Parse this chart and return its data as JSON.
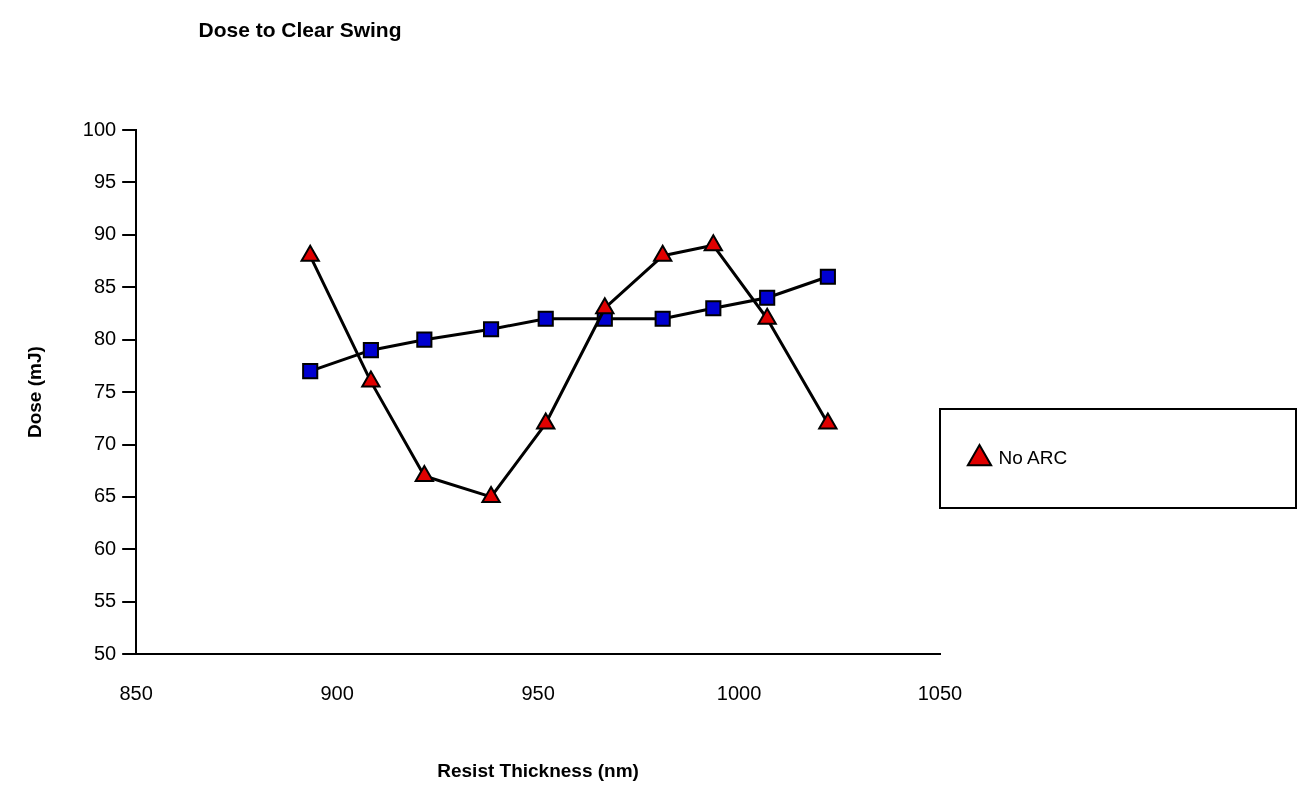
{
  "chart_data": {
    "type": "line",
    "title": "Dose to Clear Swing",
    "xlabel": "Resist Thickness (nm)",
    "ylabel": "Dose (mJ)",
    "xlim": [
      850,
      1050
    ],
    "xticks": [
      850,
      900,
      950,
      1000,
      1050
    ],
    "ylim": [
      50,
      100
    ],
    "yticks": [
      50,
      55,
      60,
      65,
      70,
      75,
      80,
      85,
      90,
      95,
      100
    ],
    "grid": false,
    "legend": "right",
    "line_style": "solid",
    "series": [
      {
        "name": "No ARC",
        "color": "#e00000",
        "marker": "triangle",
        "x": [
          893.3,
          908.4,
          921.7,
          938.3,
          951.9,
          966.6,
          981,
          993.6,
          1007,
          1022.1
        ],
        "values": [
          88,
          76,
          67,
          65,
          72,
          83,
          88,
          89,
          82,
          72
        ]
      },
      {
        "color": "#0000d0",
        "marker": "square",
        "x": [
          893.3,
          908.4,
          921.7,
          938.3,
          951.9,
          966.6,
          981,
          993.6,
          1007,
          1022.1
        ],
        "values": [
          77,
          79,
          80,
          81,
          82,
          82,
          82,
          83,
          84,
          86
        ]
      }
    ]
  }
}
